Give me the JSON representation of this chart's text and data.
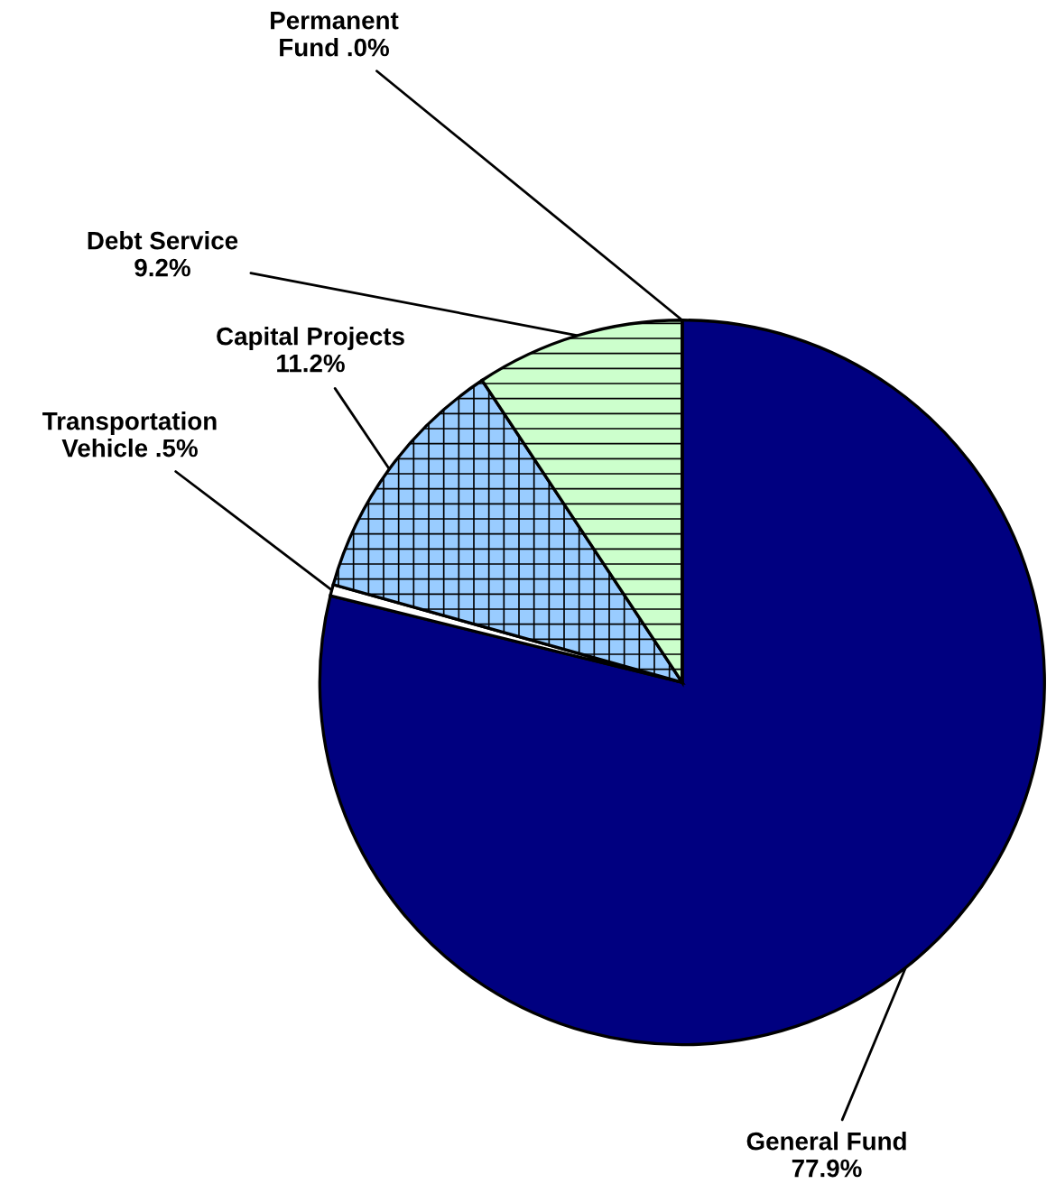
{
  "chart_data": {
    "type": "pie",
    "categories": [
      "General Fund",
      "Transportation\nVehicle",
      "Capital Projects",
      "Debt Service",
      "Permanent\nFund"
    ],
    "values": [
      77.9,
      0.5,
      11.2,
      9.2,
      0.0
    ],
    "value_labels": [
      "77.9%",
      ".5%",
      "11.2%",
      "9.2%",
      ".0%"
    ],
    "colors": [
      "#000080",
      "#ffffff",
      "#99ccff",
      "#ccffcc",
      "#ffffff"
    ]
  }
}
